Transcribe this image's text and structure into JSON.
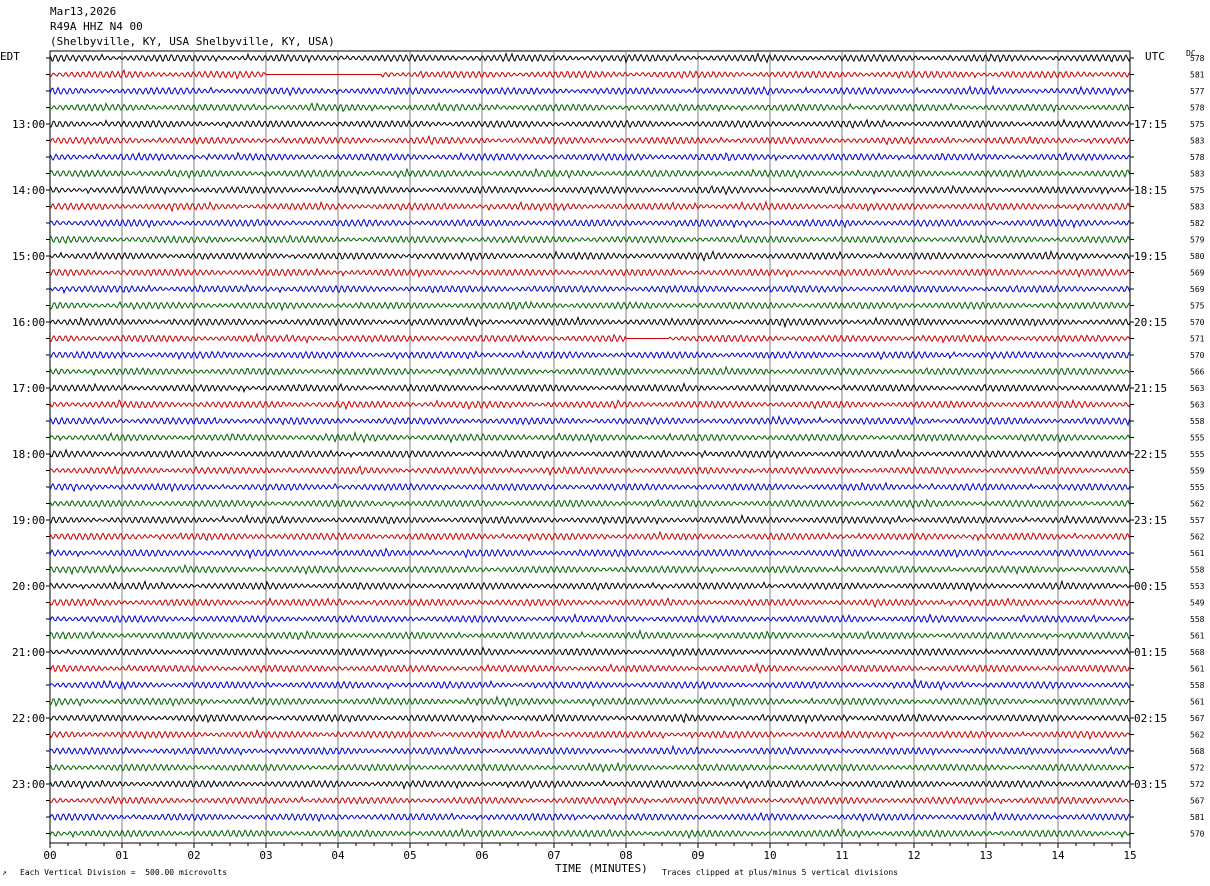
{
  "header": {
    "date": "Mar13,2026",
    "station": "R49A HHZ N4 00",
    "location": "(Shelbyville, KY, USA Shelbyville, KY, USA)"
  },
  "left_timezone": "EDT",
  "right_timezone": "UTC",
  "dc_label": "DC",
  "footer": {
    "scale_note": "Each Vertical Division =  500.00 microvolts",
    "xlabel": "TIME (MINUTES)",
    "clip_note": "Traces clipped at plus/minus 5 vertical divisions"
  },
  "colors": {
    "black": "#000000",
    "red": "#cc0000",
    "blue": "#0000cc",
    "green": "#006400",
    "grid": "#808080"
  },
  "chart_data": {
    "type": "line",
    "title": "",
    "xlabel": "TIME (MINUTES)",
    "xlim": [
      0,
      15
    ],
    "x_ticks": [
      "00",
      "01",
      "02",
      "03",
      "04",
      "05",
      "06",
      "07",
      "08",
      "09",
      "10",
      "11",
      "12",
      "13",
      "14",
      "15"
    ],
    "trace_color_cycle": [
      "black",
      "red",
      "blue",
      "green"
    ],
    "left_hour_labels": [
      "13:00",
      "14:00",
      "15:00",
      "16:00",
      "17:00",
      "18:00",
      "19:00",
      "20:00",
      "21:00",
      "22:00",
      "23:00"
    ],
    "right_hour_labels": [
      "17:15",
      "18:15",
      "19:15",
      "20:15",
      "21:15",
      "22:15",
      "23:15",
      "00:15",
      "01:15",
      "02:15",
      "03:15"
    ],
    "dc_offsets": [
      578,
      581,
      577,
      578,
      575,
      583,
      578,
      583,
      575,
      583,
      582,
      579,
      580,
      569,
      569,
      575,
      570,
      571,
      570,
      566,
      563,
      563,
      558,
      555,
      555,
      559,
      555,
      562,
      557,
      562,
      561,
      558,
      553,
      549,
      558,
      561,
      568,
      561,
      558,
      561,
      567,
      562,
      568,
      572,
      572,
      567,
      581,
      570
    ],
    "flat_segments": [
      {
        "trace": 1,
        "start_min": 3.0,
        "end_min": 4.6
      },
      {
        "trace": 17,
        "start_min": 8.0,
        "end_min": 8.6
      }
    ],
    "num_traces": 48,
    "minutes_per_trace": 15
  }
}
